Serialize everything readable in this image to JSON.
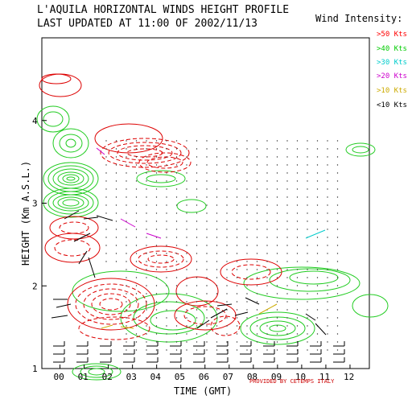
{
  "header": {
    "title": "L'AQUILA HORIZONTAL WINDS HEIGHT PROFILE",
    "subtitle": "LAST UPDATED AT 11:00 OF 2002/11/13"
  },
  "legend": {
    "title": "Wind Intensity:",
    "items": [
      {
        "label": ">50 Kts",
        "color": "#ff0000"
      },
      {
        "label": ">40 Kts",
        "color": "#00cc00"
      },
      {
        "label": ">30 Kts",
        "color": "#00cccc"
      },
      {
        "label": ">20 Kts",
        "color": "#cc00cc"
      },
      {
        "label": ">10 Kts",
        "color": "#ccaa00"
      },
      {
        "label": "<10 Kts",
        "color": "#000000"
      }
    ]
  },
  "colors": {
    "contour_red": "#dd0000",
    "contour_green": "#22cc22",
    "barb_black": "#000000",
    "barb_magenta": "#cc00cc",
    "barb_cyan": "#00cccc",
    "barb_yellow": "#ccaa00"
  },
  "chart_data": {
    "type": "contour",
    "title": "L'AQUILA HORIZONTAL WINDS HEIGHT PROFILE",
    "xlabel": "TIME (GMT)",
    "ylabel": "HEIGHT (Km A.S.L.)",
    "x_ticks": [
      "00",
      "01",
      "02",
      "03",
      "04",
      "05",
      "06",
      "07",
      "08",
      "09",
      "10",
      "11",
      "12"
    ],
    "y_ticks": [
      1,
      2,
      3,
      4
    ],
    "xlim": [
      -0.75,
      12.8
    ],
    "ylim": [
      1,
      5
    ],
    "grid": false,
    "legend_position": "top-right",
    "footer_note": "PROVIDED BY CETEMPS ITALY"
  }
}
